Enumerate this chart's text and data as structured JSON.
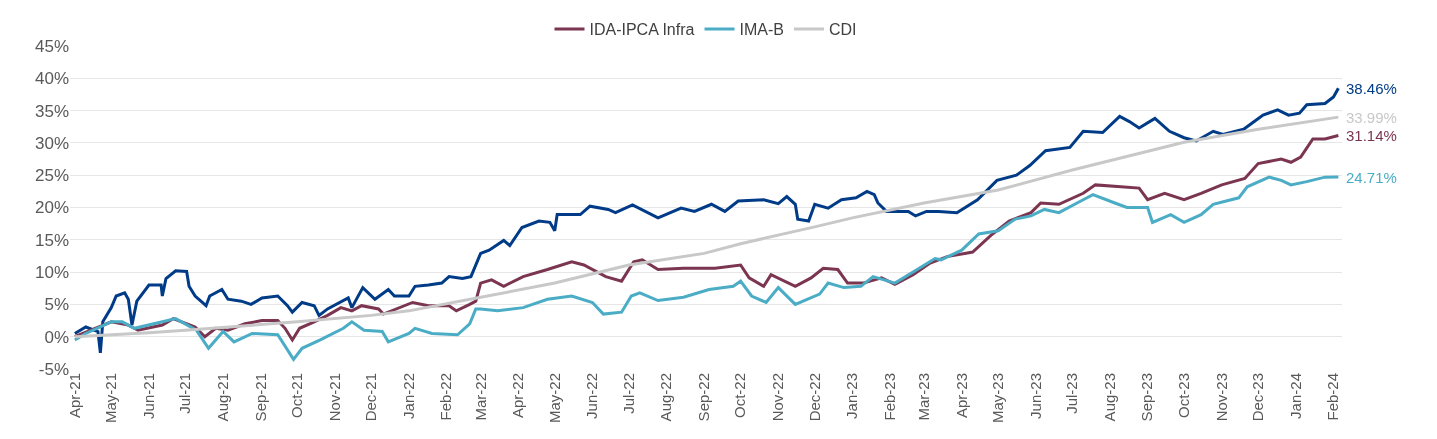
{
  "chart_data": {
    "type": "line",
    "legend": "top",
    "grid": "y",
    "line_style": "solid",
    "marker": "none",
    "xlim": [
      "2021-03-28",
      "2024-02-08"
    ],
    "xticks": [
      {
        "value": "2021-04-01",
        "label": "Apr-21"
      },
      {
        "value": "2021-05-01",
        "label": "May-21"
      },
      {
        "value": "2021-06-01",
        "label": "Jun-21"
      },
      {
        "value": "2021-07-01",
        "label": "Jul-21"
      },
      {
        "value": "2021-08-01",
        "label": "Aug-21"
      },
      {
        "value": "2021-09-01",
        "label": "Sep-21"
      },
      {
        "value": "2021-10-01",
        "label": "Oct-21"
      },
      {
        "value": "2021-11-01",
        "label": "Nov-21"
      },
      {
        "value": "2021-12-01",
        "label": "Dec-21"
      },
      {
        "value": "2022-01-01",
        "label": "Jan-22"
      },
      {
        "value": "2022-02-01",
        "label": "Feb-22"
      },
      {
        "value": "2022-03-01",
        "label": "Mar-22"
      },
      {
        "value": "2022-04-01",
        "label": "Apr-22"
      },
      {
        "value": "2022-05-01",
        "label": "May-22"
      },
      {
        "value": "2022-06-01",
        "label": "Jun-22"
      },
      {
        "value": "2022-07-01",
        "label": "Jul-22"
      },
      {
        "value": "2022-08-01",
        "label": "Aug-22"
      },
      {
        "value": "2022-09-01",
        "label": "Sep-22"
      },
      {
        "value": "2022-10-01",
        "label": "Oct-22"
      },
      {
        "value": "2022-11-01",
        "label": "Nov-22"
      },
      {
        "value": "2022-12-01",
        "label": "Dec-22"
      },
      {
        "value": "2023-01-01",
        "label": "Jan-23"
      },
      {
        "value": "2023-02-01",
        "label": "Feb-23"
      },
      {
        "value": "2023-03-01",
        "label": "Mar-23"
      },
      {
        "value": "2023-04-01",
        "label": "Apr-23"
      },
      {
        "value": "2023-05-01",
        "label": "May-23"
      },
      {
        "value": "2023-06-01",
        "label": "Jun-23"
      },
      {
        "value": "2023-07-01",
        "label": "Jul-23"
      },
      {
        "value": "2023-08-01",
        "label": "Aug-23"
      },
      {
        "value": "2023-09-01",
        "label": "Sep-23"
      },
      {
        "value": "2023-10-01",
        "label": "Oct-23"
      },
      {
        "value": "2023-11-01",
        "label": "Nov-23"
      },
      {
        "value": "2023-12-01",
        "label": "Dec-23"
      },
      {
        "value": "2024-01-01",
        "label": "Jan-24"
      },
      {
        "value": "2024-02-01",
        "label": "Feb-24"
      }
    ],
    "ylim": [
      -5,
      45
    ],
    "yticks": [
      {
        "value": -5,
        "label": "-5%"
      },
      {
        "value": 0,
        "label": "0%"
      },
      {
        "value": 5,
        "label": "5%"
      },
      {
        "value": 10,
        "label": "10%"
      },
      {
        "value": 15,
        "label": "15%"
      },
      {
        "value": 20,
        "label": "20%"
      },
      {
        "value": 25,
        "label": "25%"
      },
      {
        "value": 30,
        "label": "30%"
      },
      {
        "value": 35,
        "label": "35%"
      },
      {
        "value": 40,
        "label": "40%"
      },
      {
        "value": 45,
        "label": "45%"
      }
    ],
    "series": [
      {
        "color": "#003b87",
        "x": [
          "2021-04-01",
          "2021-04-10",
          "2021-04-20",
          "2021-04-22",
          "2021-04-24",
          "2021-05-01",
          "2021-05-05",
          "2021-05-12",
          "2021-05-15",
          "2021-05-18",
          "2021-05-22",
          "2021-06-01",
          "2021-06-11",
          "2021-06-12",
          "2021-06-15",
          "2021-06-23",
          "2021-07-02",
          "2021-07-04",
          "2021-07-09",
          "2021-07-18",
          "2021-07-21",
          "2021-07-31",
          "2021-08-05",
          "2021-08-16",
          "2021-08-24",
          "2021-09-02",
          "2021-09-15",
          "2021-09-23",
          "2021-09-27",
          "2021-10-05",
          "2021-10-15",
          "2021-10-19",
          "2021-10-26",
          "2021-11-12",
          "2021-11-15",
          "2021-11-24",
          "2021-12-04",
          "2021-12-15",
          "2021-12-20",
          "2022-01-01",
          "2022-01-06",
          "2022-01-17",
          "2022-01-28",
          "2022-02-03",
          "2022-02-14",
          "2022-02-21",
          "2022-03-01",
          "2022-03-08",
          "2022-03-20",
          "2022-03-25",
          "2022-04-04",
          "2022-04-18",
          "2022-04-27",
          "2022-05-01",
          "2022-05-03",
          "2022-05-22",
          "2022-05-30",
          "2022-06-14",
          "2022-06-20",
          "2022-07-04",
          "2022-07-25",
          "2022-08-13",
          "2022-08-24",
          "2022-09-07",
          "2022-09-18",
          "2022-09-29",
          "2022-10-20",
          "2022-11-01",
          "2022-11-08",
          "2022-11-15",
          "2022-11-17",
          "2022-11-26",
          "2022-12-01",
          "2022-12-12",
          "2022-12-23",
          "2023-01-04",
          "2023-01-13",
          "2023-01-19",
          "2023-01-22",
          "2023-01-29",
          "2023-02-16",
          "2023-02-22",
          "2023-03-03",
          "2023-03-13",
          "2023-03-28",
          "2023-04-14",
          "2023-04-30",
          "2023-05-16",
          "2023-05-27",
          "2023-06-09",
          "2023-06-29",
          "2023-07-10",
          "2023-07-26",
          "2023-08-09",
          "2023-08-17",
          "2023-08-25",
          "2023-09-07",
          "2023-09-19",
          "2023-10-01",
          "2023-10-11",
          "2023-10-25",
          "2023-11-02",
          "2023-11-19",
          "2023-12-05",
          "2023-12-17",
          "2023-12-26",
          "2024-01-04",
          "2024-01-10",
          "2024-01-25",
          "2024-02-01",
          "2024-02-05"
        ],
        "values": [
          0.5,
          1.5,
          0.8,
          -2.5,
          2.3,
          4.5,
          6.3,
          6.8,
          5.8,
          1.8,
          5.5,
          8.0,
          8.0,
          6.3,
          9.0,
          10.2,
          10.1,
          7.8,
          6.3,
          4.8,
          6.3,
          7.3,
          5.8,
          5.5,
          5.0,
          6.0,
          6.3,
          4.8,
          3.8,
          5.3,
          4.8,
          3.3,
          4.3,
          6.0,
          4.5,
          7.6,
          5.8,
          7.3,
          6.3,
          6.3,
          7.8,
          8.0,
          8.3,
          9.3,
          9.0,
          9.3,
          12.9,
          13.4,
          14.9,
          14.1,
          16.9,
          17.9,
          17.7,
          16.4,
          18.9,
          18.9,
          20.2,
          19.7,
          19.2,
          20.4,
          18.4,
          19.9,
          19.4,
          20.5,
          19.4,
          21.0,
          21.2,
          20.6,
          21.7,
          20.5,
          18.2,
          17.9,
          20.5,
          19.9,
          21.2,
          21.5,
          22.5,
          22.0,
          20.7,
          19.4,
          19.4,
          18.7,
          19.4,
          19.4,
          19.2,
          21.2,
          24.2,
          25.0,
          26.5,
          28.8,
          29.3,
          31.8,
          31.6,
          34.1,
          33.3,
          32.3,
          33.8,
          31.8,
          30.8,
          30.3,
          31.8,
          31.3,
          32.1,
          34.3,
          35.1,
          34.3,
          34.6,
          35.9,
          36.1,
          37.1,
          38.46
        ]
      },
      {
        "name": "IDA-IPCA Infra",
        "color": "#7b3550",
        "x": [
          "2021-04-01",
          "2021-05-01",
          "2021-05-15",
          "2021-05-23",
          "2021-06-12",
          "2021-06-21",
          "2021-07-09",
          "2021-07-17",
          "2021-07-26",
          "2021-08-05",
          "2021-08-19",
          "2021-09-02",
          "2021-09-15",
          "2021-09-21",
          "2021-09-27",
          "2021-10-03",
          "2021-10-15",
          "2021-10-26",
          "2021-11-06",
          "2021-11-15",
          "2021-11-23",
          "2021-12-07",
          "2021-12-11",
          "2022-01-04",
          "2022-01-17",
          "2022-02-03",
          "2022-02-09",
          "2022-02-20",
          "2022-02-25",
          "2022-03-01",
          "2022-03-10",
          "2022-03-20",
          "2022-04-05",
          "2022-04-25",
          "2022-05-15",
          "2022-05-25",
          "2022-06-12",
          "2022-06-25",
          "2022-07-05",
          "2022-07-12",
          "2022-07-25",
          "2022-08-15",
          "2022-09-10",
          "2022-10-01",
          "2022-10-08",
          "2022-10-20",
          "2022-10-26",
          "2022-11-15",
          "2022-11-28",
          "2022-12-08",
          "2022-12-20",
          "2022-12-28",
          "2023-01-10",
          "2023-01-25",
          "2023-02-05",
          "2023-02-20",
          "2023-03-06",
          "2023-03-20",
          "2023-04-10",
          "2023-04-25",
          "2023-05-10",
          "2023-05-28",
          "2023-06-05",
          "2023-06-20",
          "2023-07-10",
          "2023-07-20",
          "2023-08-10",
          "2023-08-25",
          "2023-09-01",
          "2023-09-15",
          "2023-10-01",
          "2023-10-15",
          "2023-11-01",
          "2023-11-20",
          "2023-12-01",
          "2023-12-20",
          "2023-12-28",
          "2024-01-05",
          "2024-01-15",
          "2024-01-25",
          "2024-02-05"
        ],
        "values": [
          0,
          2.3,
          1.8,
          1.0,
          1.8,
          2.8,
          1.5,
          0,
          1.3,
          1.0,
          2.0,
          2.5,
          2.5,
          1.3,
          -0.5,
          1.3,
          2.3,
          3.3,
          4.5,
          4.0,
          4.8,
          4.3,
          3.5,
          5.3,
          4.8,
          4.8,
          4.0,
          5.0,
          5.5,
          8.3,
          8.8,
          7.8,
          9.3,
          10.4,
          11.6,
          11.1,
          9.3,
          8.6,
          11.6,
          11.9,
          10.4,
          10.6,
          10.6,
          11.1,
          9.1,
          7.8,
          9.6,
          7.8,
          9.1,
          10.6,
          10.4,
          8.3,
          8.3,
          9.1,
          8.1,
          9.6,
          11.4,
          12.4,
          13.1,
          15.7,
          17.9,
          19.2,
          20.7,
          20.5,
          22.2,
          23.5,
          23.2,
          23.0,
          21.2,
          22.2,
          21.2,
          22.2,
          23.5,
          24.5,
          26.8,
          27.5,
          27.0,
          27.8,
          30.6,
          30.6,
          31.14
        ]
      },
      {
        "name": "IMA-B",
        "color": "#4bacc6",
        "x": [
          "2021-04-01",
          "2021-04-10",
          "2021-05-01",
          "2021-05-10",
          "2021-05-20",
          "2021-06-05",
          "2021-06-23",
          "2021-07-10",
          "2021-07-20",
          "2021-08-01",
          "2021-08-10",
          "2021-08-25",
          "2021-09-15",
          "2021-09-28",
          "2021-10-05",
          "2021-10-20",
          "2021-11-08",
          "2021-11-15",
          "2021-11-25",
          "2021-12-10",
          "2021-12-15",
          "2022-01-01",
          "2022-01-06",
          "2022-01-20",
          "2022-02-10",
          "2022-02-20",
          "2022-02-25",
          "2022-03-01",
          "2022-03-15",
          "2022-04-05",
          "2022-04-25",
          "2022-05-15",
          "2022-06-01",
          "2022-06-10",
          "2022-06-25",
          "2022-07-03",
          "2022-07-10",
          "2022-07-25",
          "2022-08-15",
          "2022-09-05",
          "2022-09-25",
          "2022-10-01",
          "2022-10-10",
          "2022-10-22",
          "2022-11-01",
          "2022-11-15",
          "2022-12-05",
          "2022-12-12",
          "2022-12-25",
          "2023-01-08",
          "2023-01-18",
          "2023-02-05",
          "2023-02-25",
          "2023-03-10",
          "2023-03-15",
          "2023-04-01",
          "2023-04-15",
          "2023-05-01",
          "2023-05-15",
          "2023-05-28",
          "2023-06-08",
          "2023-06-20",
          "2023-07-10",
          "2023-07-18",
          "2023-08-05",
          "2023-08-15",
          "2023-09-01",
          "2023-09-05",
          "2023-09-20",
          "2023-10-01",
          "2023-10-15",
          "2023-10-25",
          "2023-11-15",
          "2023-11-22",
          "2023-12-10",
          "2023-12-20",
          "2023-12-28",
          "2024-01-10",
          "2024-01-25",
          "2024-02-05"
        ],
        "values": [
          -0.5,
          0.5,
          2.3,
          2.3,
          1.3,
          2.0,
          2.8,
          1.0,
          -1.8,
          0.8,
          -0.8,
          0.5,
          0.3,
          -3.5,
          -1.8,
          -0.5,
          1.3,
          2.3,
          1.0,
          0.8,
          -0.8,
          0.5,
          1.3,
          0.5,
          0.3,
          2.0,
          4.3,
          4.3,
          4.0,
          4.5,
          5.8,
          6.3,
          5.3,
          3.5,
          3.8,
          6.3,
          6.8,
          5.6,
          6.1,
          7.3,
          7.8,
          8.6,
          6.3,
          5.3,
          7.6,
          5.0,
          6.6,
          8.3,
          7.6,
          7.8,
          9.3,
          8.3,
          10.6,
          12.1,
          11.9,
          13.4,
          15.9,
          16.4,
          18.2,
          18.7,
          19.7,
          19.2,
          21.2,
          22.0,
          20.7,
          20.0,
          20.0,
          17.7,
          18.9,
          17.7,
          18.9,
          20.5,
          21.5,
          23.2,
          24.7,
          24.2,
          23.5,
          24.0,
          24.7,
          24.71
        ]
      },
      {
        "name": "CDI",
        "color": "#c8c8c8",
        "x": [
          "2021-04-01",
          "2021-06-01",
          "2021-07-01",
          "2021-10-01",
          "2021-12-01",
          "2022-01-01",
          "2022-03-01",
          "2022-05-01",
          "2022-07-01",
          "2022-09-01",
          "2022-10-01",
          "2022-12-01",
          "2023-01-01",
          "2023-03-01",
          "2023-05-01",
          "2023-07-01",
          "2023-10-01",
          "2023-12-01",
          "2024-02-05"
        ],
        "values": [
          0,
          0.6,
          1.0,
          2.3,
          3.3,
          4.0,
          6.1,
          8.3,
          11.1,
          12.9,
          14.4,
          17.0,
          18.4,
          20.7,
          22.7,
          25.8,
          30.1,
          32.1,
          33.99
        ]
      }
    ],
    "annotations": [
      {
        "text": "38.46%",
        "x": "2024-02-05",
        "y": 38.46
      },
      {
        "text": "33.99%",
        "x": "2024-02-05",
        "y": 33.99
      },
      {
        "text": "31.14%",
        "x": "2024-02-05",
        "y": 31.14
      },
      {
        "text": "24.71%",
        "x": "2024-02-05",
        "y": 24.71
      }
    ]
  }
}
